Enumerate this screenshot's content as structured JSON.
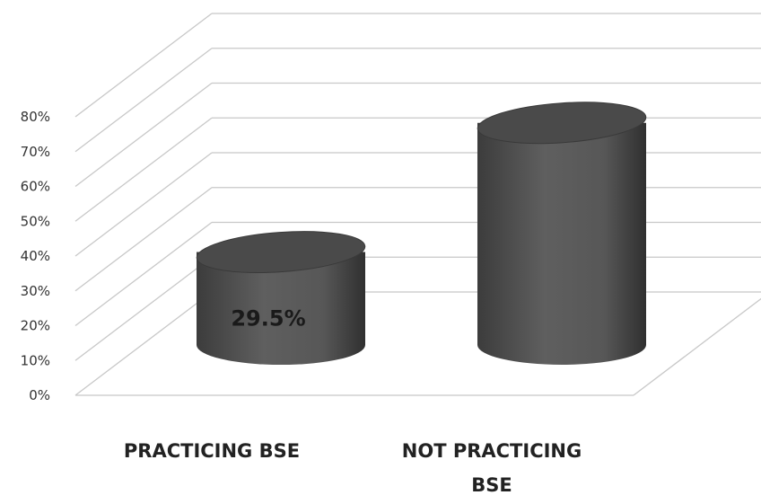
{
  "chart_data": {
    "type": "bar",
    "style": "3d-cylinder",
    "categories": [
      "PRACTICING BSE",
      "NOT PRACTICING BSE"
    ],
    "category_lines": [
      [
        "PRACTICING BSE"
      ],
      [
        "NOT PRACTICING",
        "BSE"
      ]
    ],
    "values": [
      29.5,
      70.5
    ],
    "data_labels": [
      "29.5%",
      ""
    ],
    "ylim": [
      0,
      80
    ],
    "yticks": [
      "0%",
      "10%",
      "20%",
      "30%",
      "40%",
      "50%",
      "60%",
      "70%",
      "80%"
    ],
    "grid": true,
    "legend": "none",
    "colors": {
      "bar": "#555555",
      "grid": "#c8c8c8",
      "text": "#222222"
    }
  }
}
